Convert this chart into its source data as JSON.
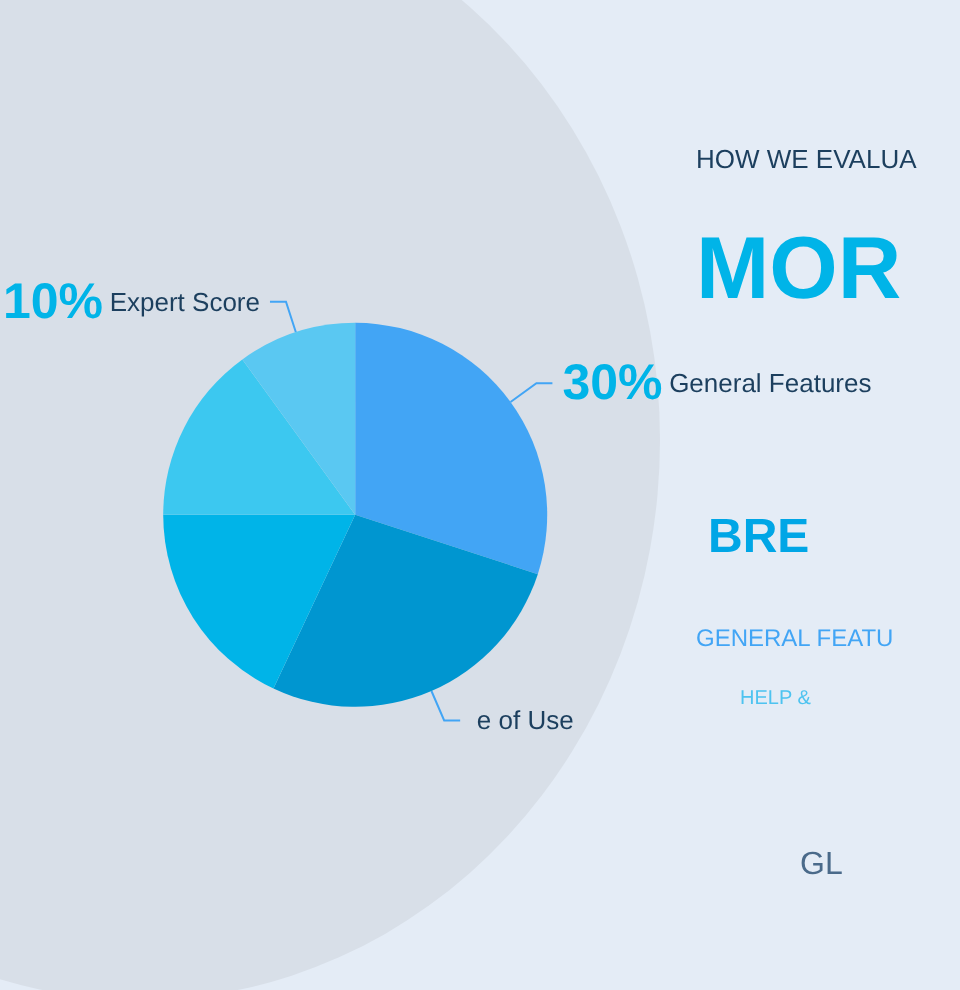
{
  "chart_data": {
    "type": "pie",
    "categories": [
      "General Features",
      "e of Use",
      null,
      null,
      "Expert Score"
    ],
    "values": [
      30,
      27,
      18,
      15,
      10
    ],
    "value_labels": [
      "30%",
      null,
      null,
      null,
      "10%"
    ],
    "colors": [
      "#42a5f5",
      "#0096d0",
      "#00b4e8",
      "#3cc8f0",
      "#5ac8f2"
    ],
    "legend": false,
    "annotations": [
      "HOW WE EVALUA",
      "MOR",
      "BRE",
      "GENERAL FEATU",
      "HELP &",
      "GL"
    ]
  }
}
